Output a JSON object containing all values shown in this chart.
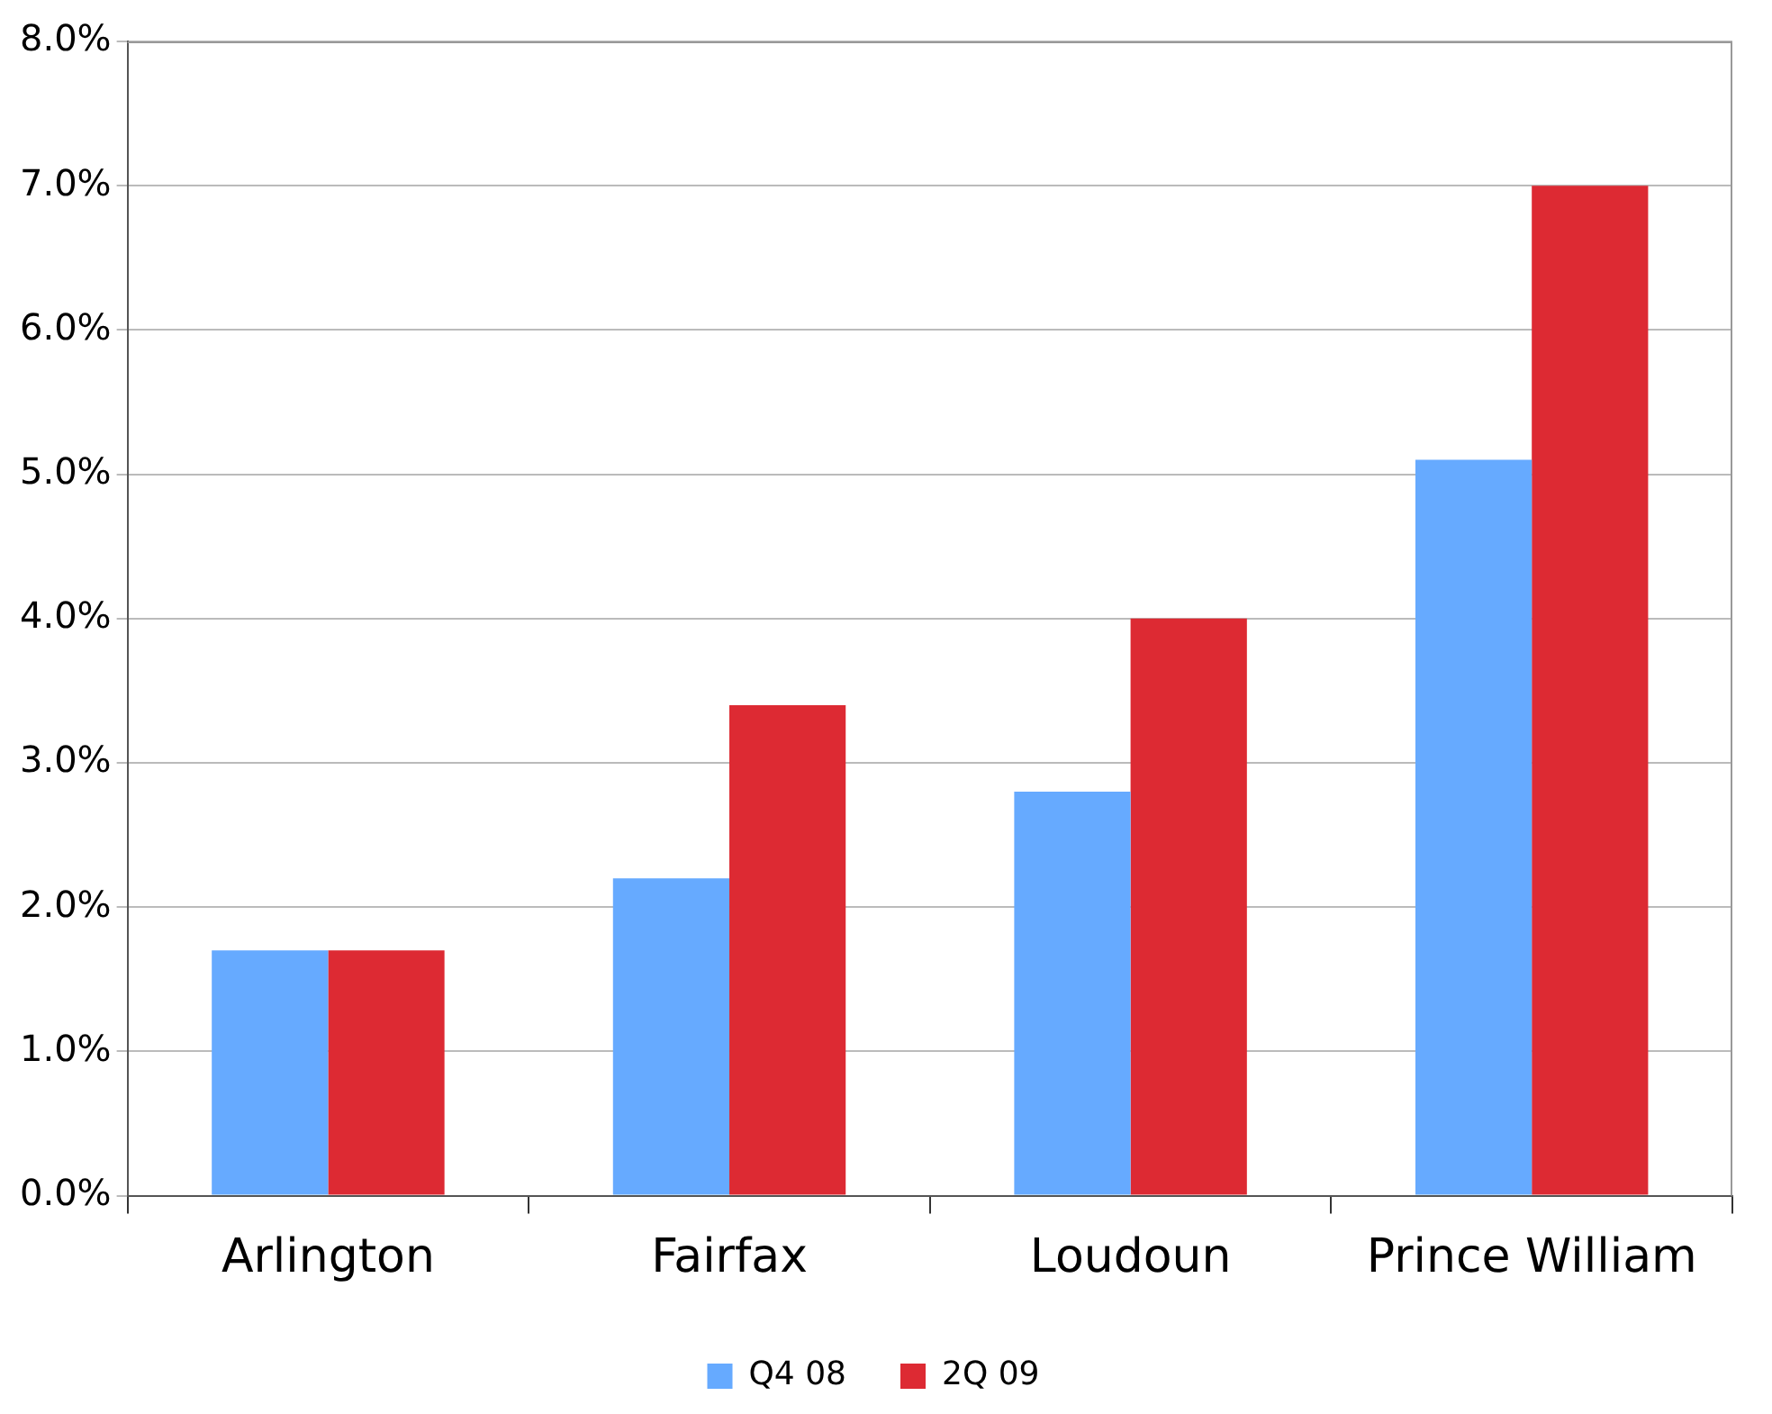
{
  "chart_data": {
    "type": "bar",
    "categories": [
      "Arlington",
      "Fairfax",
      "Loudoun",
      "Prince William"
    ],
    "series": [
      {
        "name": "Q4 08",
        "color": "#66aaff",
        "values": [
          1.7,
          2.2,
          2.8,
          5.1
        ]
      },
      {
        "name": "2Q 09",
        "color": "#dd2a33",
        "values": [
          1.7,
          3.4,
          4.0,
          7.0
        ]
      }
    ],
    "ylim": [
      0,
      8
    ],
    "yticks": [
      {
        "value": 0,
        "label": "0.0%"
      },
      {
        "value": 1,
        "label": "1.0%"
      },
      {
        "value": 2,
        "label": "2.0%"
      },
      {
        "value": 3,
        "label": "3.0%"
      },
      {
        "value": 4,
        "label": "4.0%"
      },
      {
        "value": 5,
        "label": "5.0%"
      },
      {
        "value": 6,
        "label": "6.0%"
      },
      {
        "value": 7,
        "label": "7.0%"
      },
      {
        "value": 8,
        "label": "8.0%"
      }
    ],
    "grid": "y",
    "legend": "bottom"
  }
}
